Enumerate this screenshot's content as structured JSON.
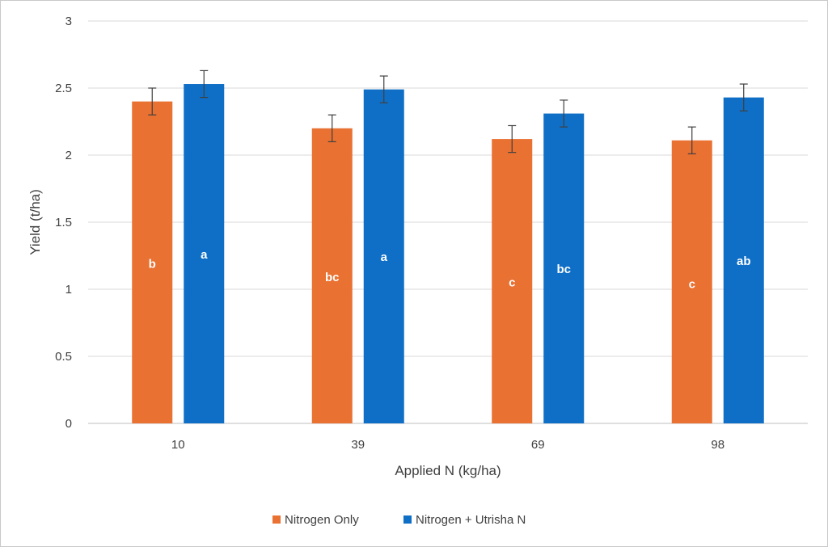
{
  "chart_data": {
    "type": "bar",
    "title": "",
    "xlabel": "Applied N (kg/ha)",
    "ylabel": "Yield (t/ha)",
    "categories": [
      "10",
      "39",
      "69",
      "98"
    ],
    "ylim": [
      0,
      3
    ],
    "yticks": [
      "0",
      "0.5",
      "1",
      "1.5",
      "2",
      "2.5",
      "3"
    ],
    "grid": true,
    "legend_position": "bottom",
    "series": [
      {
        "name": "Nitrogen Only",
        "color": "#E97132",
        "values": [
          2.4,
          2.2,
          2.12,
          2.11
        ],
        "error": [
          0.1,
          0.1,
          0.1,
          0.1
        ],
        "labels": [
          "b",
          "bc",
          "c",
          "c"
        ],
        "label_values": [
          1.19,
          1.09,
          1.05,
          1.04
        ]
      },
      {
        "name": "Nitrogen + Utrisha N",
        "color": "#0F6FC6",
        "values": [
          2.53,
          2.49,
          2.31,
          2.43
        ],
        "error": [
          0.1,
          0.1,
          0.1,
          0.1
        ],
        "labels": [
          "a",
          "a",
          "bc",
          "ab"
        ],
        "label_values": [
          1.26,
          1.24,
          1.15,
          1.21
        ]
      }
    ]
  }
}
